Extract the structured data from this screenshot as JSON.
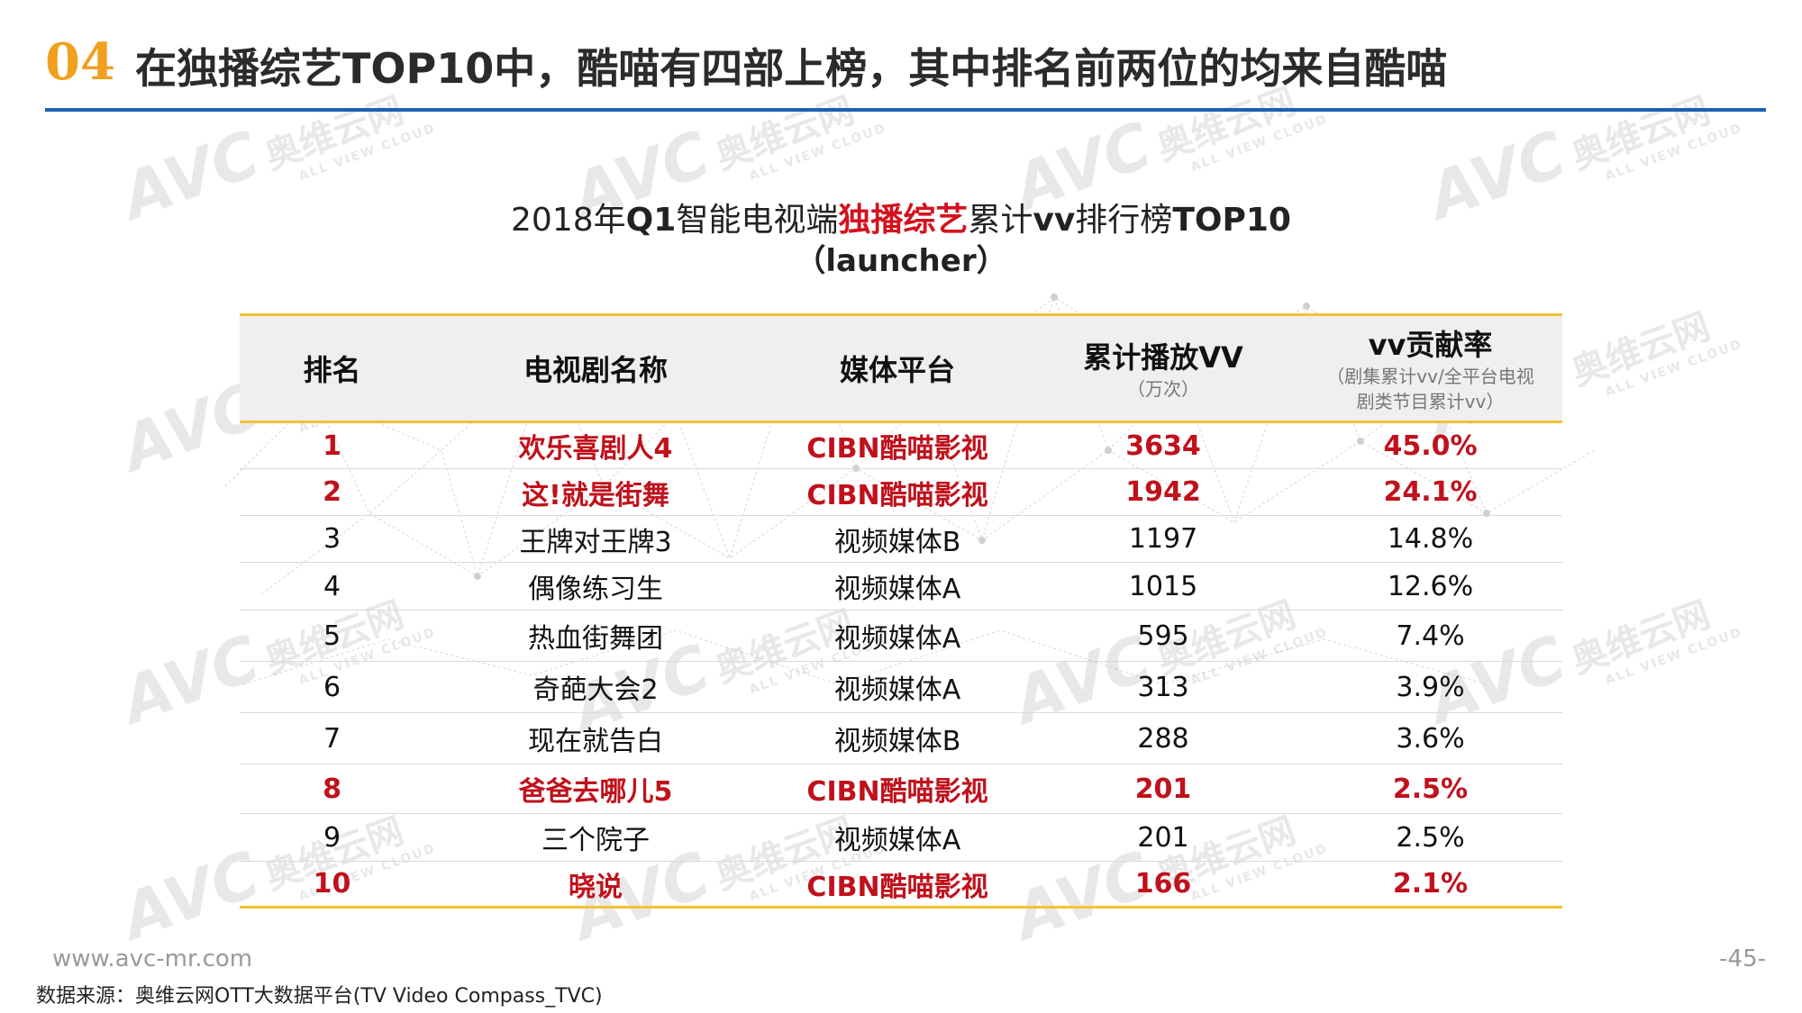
{
  "header": {
    "section_number": "04",
    "title": "在独播综艺TOP10中，酷喵有四部上榜，其中排名前两位的均来自酷喵"
  },
  "chart": {
    "title_pre": "2018年",
    "title_q1": "Q1",
    "title_mid": "智能电视端",
    "title_highlight": "独播综艺",
    "title_after": "累计",
    "title_vv": "vv",
    "title_post": "排行榜",
    "title_top": "TOP10",
    "subtitle": "（launcher）"
  },
  "table": {
    "headers": {
      "rank": "排名",
      "name": "电视剧名称",
      "platform": "媒体平台",
      "vv": "累计播放VV",
      "vv_unit": "（万次）",
      "share": "vv贡献率",
      "share_note_1": "（剧集累计vv/全平台电视",
      "share_note_2": "剧类节目累计vv）"
    },
    "rows": [
      {
        "rank": "1",
        "name": "欢乐喜剧人4",
        "platform": "CIBN酷喵影视",
        "vv": "3634",
        "share": "45.0%",
        "highlight": true
      },
      {
        "rank": "2",
        "name": "这!就是街舞",
        "platform": "CIBN酷喵影视",
        "vv": "1942",
        "share": "24.1%",
        "highlight": true
      },
      {
        "rank": "3",
        "name": "王牌对王牌3",
        "platform": "视频媒体B",
        "vv": "1197",
        "share": "14.8%",
        "highlight": false
      },
      {
        "rank": "4",
        "name": "偶像练习生",
        "platform": "视频媒体A",
        "vv": "1015",
        "share": "12.6%",
        "highlight": false
      },
      {
        "rank": "5",
        "name": "热血街舞团",
        "platform": "视频媒体A",
        "vv": "595",
        "share": "7.4%",
        "highlight": false
      },
      {
        "rank": "6",
        "name": "奇葩大会2",
        "platform": "视频媒体A",
        "vv": "313",
        "share": "3.9%",
        "highlight": false
      },
      {
        "rank": "7",
        "name": "现在就告白",
        "platform": "视频媒体B",
        "vv": "288",
        "share": "3.6%",
        "highlight": false
      },
      {
        "rank": "8",
        "name": "爸爸去哪儿5",
        "platform": "CIBN酷喵影视",
        "vv": "201",
        "share": "2.5%",
        "highlight": true
      },
      {
        "rank": "9",
        "name": "三个院子",
        "platform": "视频媒体A",
        "vv": "201",
        "share": "2.5%",
        "highlight": false
      },
      {
        "rank": "10",
        "name": "晓说",
        "platform": "CIBN酷喵影视",
        "vv": "166",
        "share": "2.1%",
        "highlight": true
      }
    ]
  },
  "watermark": {
    "logo": "AVC",
    "cn": "奥维云网",
    "en": "ALL VIEW CLOUD"
  },
  "footer": {
    "url": "www.avc-mr.com",
    "source": "数据来源：奥维云网OTT大数据平台(TV Video Compass_TVC)",
    "page": "-45-"
  },
  "colors": {
    "accent_orange": "#f0a01e",
    "rule_blue": "#1f5fb4",
    "highlight_red": "#c0111c",
    "table_gold": "#f2c233"
  }
}
